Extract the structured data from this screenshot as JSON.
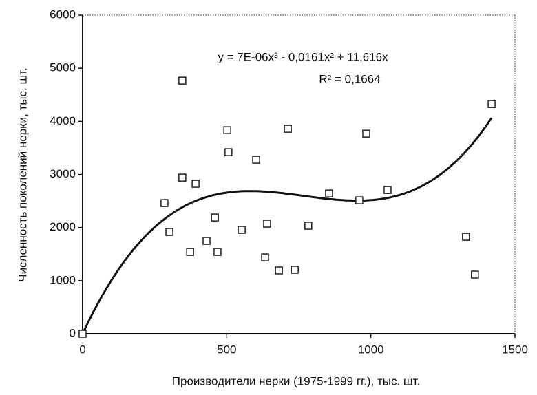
{
  "chart_data": {
    "type": "scatter",
    "xlabel": "Производители нерки (1975-1999 гг.), тыс. шт.",
    "ylabel": "Численность поколений нерки, тыс. шт.",
    "x": [
      0,
      284,
      301,
      346,
      346,
      373,
      392,
      430,
      459,
      468,
      502,
      506,
      552,
      602,
      633,
      640,
      681,
      712,
      736,
      783,
      855,
      960,
      984,
      1058,
      1330,
      1361,
      1419
    ],
    "values": [
      0,
      2461,
      1917,
      2940,
      4767,
      1541,
      2824,
      1749,
      2189,
      1541,
      3834,
      3420,
      1956,
      3277,
      1438,
      2073,
      1192,
      3860,
      1205,
      2034,
      2642,
      2513,
      3769,
      2707,
      1826,
      1114,
      4326
    ],
    "color": "#222222",
    "xlim": [
      0,
      1500
    ],
    "ylim": [
      0,
      6000
    ],
    "xticks": [
      0,
      500,
      1000,
      1500
    ],
    "yticks": [
      0,
      1000,
      2000,
      3000,
      4000,
      5000,
      6000
    ],
    "trendline": {
      "equation": "y = 7E-06x³ - 0,0161x² + 11,616x",
      "r2": "R² = 0,1664",
      "coefficients": [
        7e-06,
        -0.0161,
        11.616
      ]
    }
  }
}
